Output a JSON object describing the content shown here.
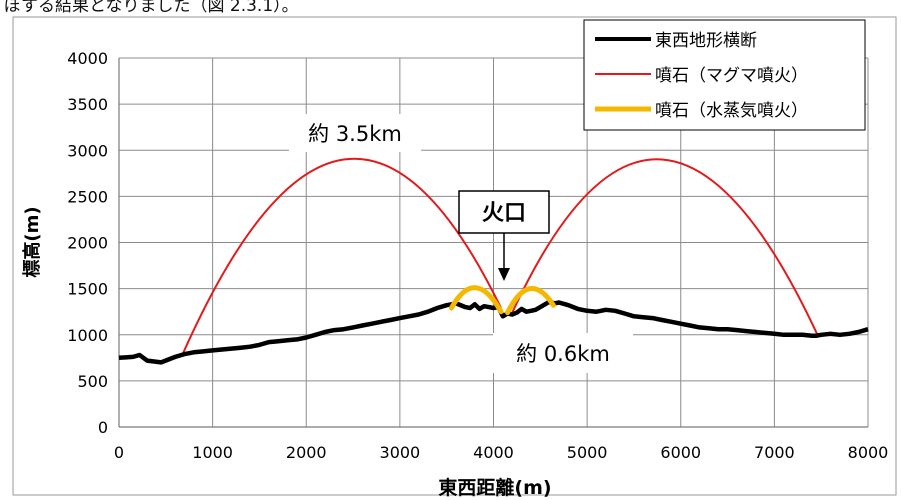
{
  "page": {
    "caption_fragment": "ぼする結果となりました（図 2.3.1）。"
  },
  "chart_data": {
    "type": "line",
    "title": "",
    "xlabel": "東西距離(m)",
    "ylabel": "標高(m)",
    "xlim": [
      0,
      8000
    ],
    "ylim": [
      0,
      4000
    ],
    "x_ticks": [
      0,
      1000,
      2000,
      3000,
      4000,
      5000,
      6000,
      7000,
      8000
    ],
    "y_ticks": [
      0,
      500,
      1000,
      1500,
      2000,
      2500,
      3000,
      3500,
      4000
    ],
    "grid": true,
    "legend_position": "top-right",
    "series": [
      {
        "name": "東西地形横断",
        "color": "#000000",
        "x": [
          0,
          150,
          220,
          300,
          450,
          600,
          700,
          800,
          900,
          1000,
          1100,
          1200,
          1300,
          1400,
          1500,
          1600,
          1700,
          1800,
          1900,
          2000,
          2100,
          2200,
          2300,
          2400,
          2500,
          2600,
          2700,
          2800,
          2900,
          3000,
          3100,
          3200,
          3300,
          3400,
          3500,
          3600,
          3700,
          3750,
          3800,
          3850,
          3900,
          3950,
          4000,
          4050,
          4100,
          4150,
          4200,
          4250,
          4300,
          4350,
          4400,
          4450,
          4500,
          4550,
          4600,
          4650,
          4700,
          4800,
          4900,
          5000,
          5100,
          5200,
          5300,
          5400,
          5500,
          5600,
          5700,
          5800,
          5900,
          6000,
          6100,
          6200,
          6300,
          6400,
          6500,
          6600,
          6700,
          6800,
          6900,
          7000,
          7100,
          7200,
          7300,
          7400,
          7450,
          7500,
          7600,
          7700,
          7800,
          7900,
          8000
        ],
        "y": [
          750,
          760,
          780,
          720,
          700,
          760,
          790,
          810,
          820,
          830,
          840,
          850,
          860,
          870,
          890,
          920,
          930,
          940,
          950,
          970,
          1000,
          1030,
          1050,
          1060,
          1080,
          1100,
          1120,
          1140,
          1160,
          1180,
          1200,
          1220,
          1250,
          1290,
          1320,
          1340,
          1300,
          1290,
          1330,
          1280,
          1310,
          1300,
          1290,
          1300,
          1200,
          1230,
          1220,
          1240,
          1280,
          1250,
          1260,
          1270,
          1300,
          1330,
          1360,
          1340,
          1350,
          1320,
          1280,
          1260,
          1250,
          1270,
          1260,
          1230,
          1200,
          1190,
          1180,
          1160,
          1140,
          1120,
          1100,
          1080,
          1070,
          1060,
          1060,
          1050,
          1040,
          1030,
          1020,
          1010,
          1000,
          1000,
          1000,
          990,
          990,
          1000,
          1010,
          1000,
          1010,
          1030,
          1060
        ]
      },
      {
        "name": "噴石（マグマ噴火）",
        "color": "#e31a1c",
        "arcs": [
          {
            "x_start": 680,
            "y_start": 790,
            "x_end": 4080,
            "y_end": 1290,
            "apex_x": 2400,
            "apex_y": 2900
          },
          {
            "x_start": 4200,
            "y_start": 1240,
            "x_end": 7460,
            "y_end": 1000,
            "apex_x": 5800,
            "apex_y": 2900
          }
        ]
      },
      {
        "name": "噴石（水蒸気噴火）",
        "color": "#f5b800",
        "arcs": [
          {
            "x_start": 3550,
            "y_start": 1290,
            "x_end": 4080,
            "y_end": 1250,
            "apex_x": 3810,
            "apex_y": 1510
          },
          {
            "x_start": 4150,
            "y_start": 1240,
            "x_end": 4640,
            "y_end": 1320,
            "apex_x": 4390,
            "apex_y": 1500
          }
        ]
      }
    ],
    "annotations": [
      {
        "name": "annotation-3-5km",
        "text": "約 3.5km"
      },
      {
        "name": "annotation-crater",
        "text": "火口"
      },
      {
        "name": "annotation-0-6km",
        "text": "約 0.6km"
      }
    ]
  }
}
